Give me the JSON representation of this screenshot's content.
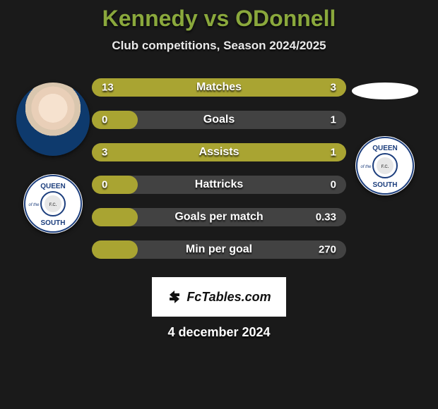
{
  "title": "Kennedy vs ODonnell",
  "subtitle": "Club competitions, Season 2024/2025",
  "attribution_text": "FcTables.com",
  "date_text": "4 december 2024",
  "colors": {
    "title_color": "#8aa83c",
    "bar_fill": "#a9a432",
    "bar_bg": "#424242",
    "page_bg": "#1a1a1a",
    "text": "#ffffff",
    "crest_navy": "#1c3e7d"
  },
  "bars": [
    {
      "label": "Matches",
      "left": "13",
      "right": "3",
      "fill_pct": 100
    },
    {
      "label": "Goals",
      "left": "0",
      "right": "1",
      "fill_pct": 18
    },
    {
      "label": "Assists",
      "left": "3",
      "right": "1",
      "fill_pct": 100
    },
    {
      "label": "Hattricks",
      "left": "0",
      "right": "0",
      "fill_pct": 18
    },
    {
      "label": "Goals per match",
      "left": "",
      "right": "0.33",
      "fill_pct": 18
    },
    {
      "label": "Min per goal",
      "left": "",
      "right": "270",
      "fill_pct": 18
    }
  ],
  "crest": {
    "top_text": "QUEEN",
    "left_text": "of the",
    "right_text": "SOUTH",
    "center_text": "F.C."
  }
}
